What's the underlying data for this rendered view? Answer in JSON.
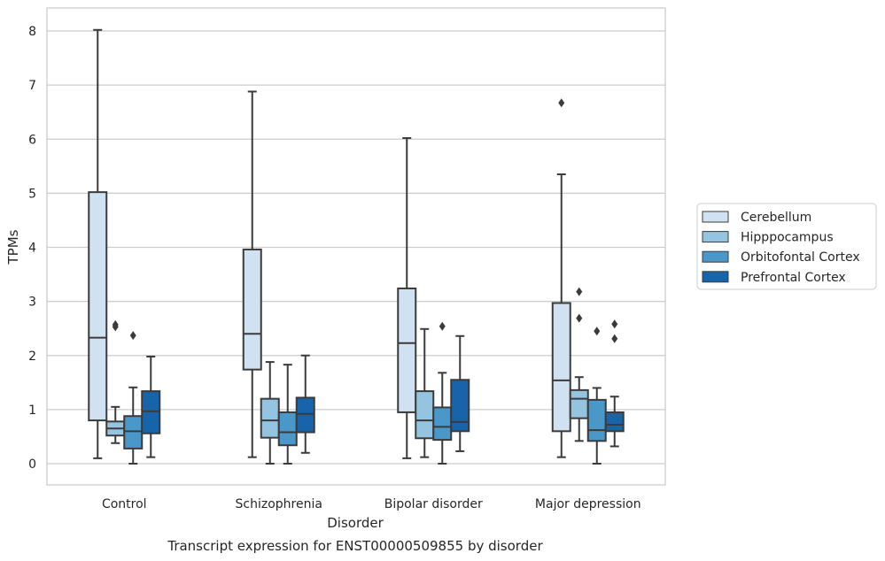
{
  "chart_data": {
    "type": "box",
    "title": "Transcript expression for ENST00000509855 by disorder",
    "xlabel": "Disorder",
    "ylabel": "TPMs",
    "ylim": [
      -0.4,
      8.45
    ],
    "yticks": [
      0,
      1,
      2,
      3,
      4,
      5,
      6,
      7,
      8
    ],
    "grid": "horizontal",
    "legend_position": "right",
    "categories": [
      "Control",
      "Schizophrenia",
      "Bipolar disorder",
      "Major depression"
    ],
    "series": [
      {
        "name": "Cerebellum",
        "color": "#d0e1f2",
        "boxes": [
          {
            "whisker_low": 0.1,
            "q1": 0.8,
            "median": 2.33,
            "q3": 5.02,
            "whisker_high": 8.02,
            "outliers": []
          },
          {
            "whisker_low": 0.12,
            "q1": 1.74,
            "median": 2.4,
            "q3": 3.96,
            "whisker_high": 6.88,
            "outliers": []
          },
          {
            "whisker_low": 0.1,
            "q1": 0.95,
            "median": 2.23,
            "q3": 3.24,
            "whisker_high": 6.02,
            "outliers": []
          },
          {
            "whisker_low": 0.12,
            "q1": 0.6,
            "median": 1.54,
            "q3": 2.97,
            "whisker_high": 5.35,
            "outliers": [
              6.67
            ]
          }
        ]
      },
      {
        "name": "Hipppocampus",
        "color": "#94c4df",
        "boxes": [
          {
            "whisker_low": 0.38,
            "q1": 0.52,
            "median": 0.65,
            "q3": 0.78,
            "whisker_high": 1.05,
            "outliers": [
              2.53,
              2.57
            ]
          },
          {
            "whisker_low": 0.0,
            "q1": 0.48,
            "median": 0.8,
            "q3": 1.2,
            "whisker_high": 1.88,
            "outliers": []
          },
          {
            "whisker_low": 0.12,
            "q1": 0.47,
            "median": 0.8,
            "q3": 1.34,
            "whisker_high": 2.49,
            "outliers": []
          },
          {
            "whisker_low": 0.42,
            "q1": 0.84,
            "median": 1.2,
            "q3": 1.36,
            "whisker_high": 1.6,
            "outliers": [
              2.69,
              3.18
            ]
          }
        ]
      },
      {
        "name": "Orbitofontal Cortex",
        "color": "#4a98c9",
        "boxes": [
          {
            "whisker_low": 0.0,
            "q1": 0.28,
            "median": 0.6,
            "q3": 0.88,
            "whisker_high": 1.41,
            "outliers": [
              2.37
            ]
          },
          {
            "whisker_low": 0.0,
            "q1": 0.34,
            "median": 0.58,
            "q3": 0.95,
            "whisker_high": 1.83,
            "outliers": []
          },
          {
            "whisker_low": 0.0,
            "q1": 0.44,
            "median": 0.68,
            "q3": 1.04,
            "whisker_high": 1.68,
            "outliers": [
              2.54
            ]
          },
          {
            "whisker_low": 0.0,
            "q1": 0.42,
            "median": 0.62,
            "q3": 1.18,
            "whisker_high": 1.4,
            "outliers": [
              2.45
            ]
          }
        ]
      },
      {
        "name": "Prefrontal Cortex",
        "color": "#1764ab",
        "boxes": [
          {
            "whisker_low": 0.12,
            "q1": 0.56,
            "median": 0.97,
            "q3": 1.34,
            "whisker_high": 1.98,
            "outliers": []
          },
          {
            "whisker_low": 0.2,
            "q1": 0.58,
            "median": 0.92,
            "q3": 1.22,
            "whisker_high": 2.0,
            "outliers": []
          },
          {
            "whisker_low": 0.23,
            "q1": 0.6,
            "median": 0.77,
            "q3": 1.55,
            "whisker_high": 2.36,
            "outliers": []
          },
          {
            "whisker_low": 0.32,
            "q1": 0.6,
            "median": 0.72,
            "q3": 0.95,
            "whisker_high": 1.24,
            "outliers": [
              2.31,
              2.58
            ]
          }
        ]
      }
    ]
  }
}
